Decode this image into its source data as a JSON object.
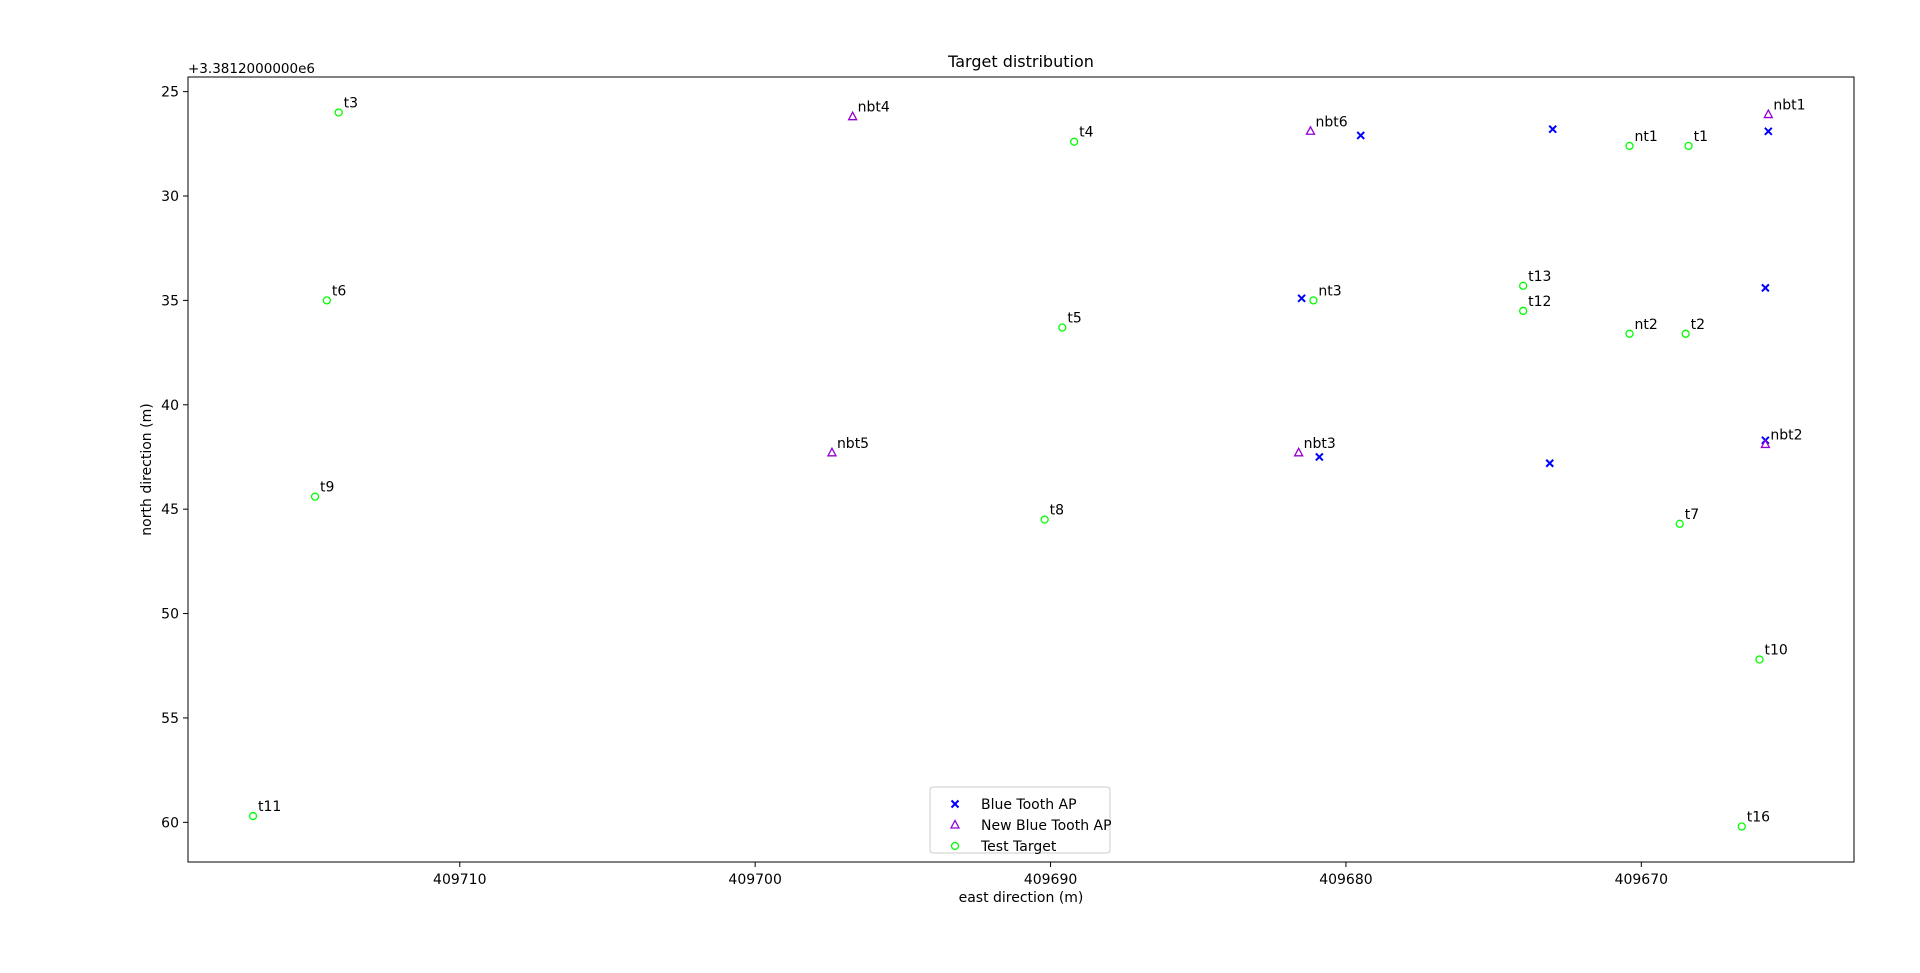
{
  "chart_data": {
    "type": "scatter",
    "title": "Target distribution",
    "xlabel": "east direction (m)",
    "ylabel": "north direction (m)",
    "y_offset_label": "+3.3812000000e6",
    "xlim": [
      409719.2,
      409662.8
    ],
    "ylim": [
      61.9,
      24.3
    ],
    "x_inverted": true,
    "y_inverted": true,
    "x_ticks": [
      409710,
      409700,
      409690,
      409680,
      409670
    ],
    "y_ticks": [
      25,
      30,
      35,
      40,
      45,
      50,
      55,
      60
    ],
    "grid": false,
    "legend_position": "lower center",
    "series": [
      {
        "name": "Blue Tooth AP",
        "marker": "x",
        "color": "#0000ff",
        "points": [
          {
            "x": 409679.5,
            "y": 27.1
          },
          {
            "x": 409673.0,
            "y": 26.8
          },
          {
            "x": 409665.7,
            "y": 26.9
          },
          {
            "x": 409681.5,
            "y": 34.9
          },
          {
            "x": 409665.8,
            "y": 34.4
          },
          {
            "x": 409680.9,
            "y": 42.5
          },
          {
            "x": 409673.1,
            "y": 42.8
          },
          {
            "x": 409665.8,
            "y": 41.7
          }
        ]
      },
      {
        "name": "New Blue Tooth AP",
        "marker": "triangle",
        "color": "#9400d3",
        "points": [
          {
            "x": 409665.7,
            "y": 26.1,
            "label": "nbt1"
          },
          {
            "x": 409665.8,
            "y": 41.9,
            "label": "nbt2"
          },
          {
            "x": 409681.6,
            "y": 42.3,
            "label": "nbt3"
          },
          {
            "x": 409696.7,
            "y": 26.2,
            "label": "nbt4"
          },
          {
            "x": 409697.4,
            "y": 42.3,
            "label": "nbt5"
          },
          {
            "x": 409681.2,
            "y": 26.9,
            "label": "nbt6"
          }
        ]
      },
      {
        "name": "Test Target",
        "marker": "circle",
        "color": "#00ff00",
        "points": [
          {
            "x": 409668.4,
            "y": 27.6,
            "label": "t1"
          },
          {
            "x": 409668.5,
            "y": 36.6,
            "label": "t2"
          },
          {
            "x": 409714.1,
            "y": 26.0,
            "label": "t3"
          },
          {
            "x": 409689.2,
            "y": 27.4,
            "label": "t4"
          },
          {
            "x": 409689.6,
            "y": 36.3,
            "label": "t5"
          },
          {
            "x": 409714.5,
            "y": 35.0,
            "label": "t6"
          },
          {
            "x": 409668.7,
            "y": 45.7,
            "label": "t7"
          },
          {
            "x": 409690.2,
            "y": 45.5,
            "label": "t8"
          },
          {
            "x": 409714.9,
            "y": 44.4,
            "label": "t9"
          },
          {
            "x": 409666.0,
            "y": 52.2,
            "label": "t10"
          },
          {
            "x": 409717.0,
            "y": 59.7,
            "label": "t11"
          },
          {
            "x": 409674.0,
            "y": 35.5,
            "label": "t12"
          },
          {
            "x": 409674.0,
            "y": 34.3,
            "label": "t13"
          },
          {
            "x": 409666.6,
            "y": 60.2,
            "label": "t16"
          },
          {
            "x": 409670.4,
            "y": 27.6,
            "label": "nt1"
          },
          {
            "x": 409670.4,
            "y": 36.6,
            "label": "nt2"
          },
          {
            "x": 409681.1,
            "y": 35.0,
            "label": "nt3"
          }
        ]
      }
    ]
  }
}
